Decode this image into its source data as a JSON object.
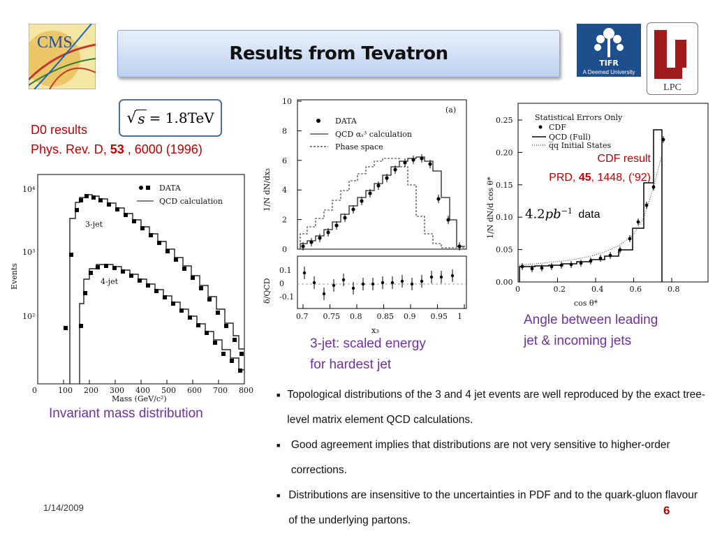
{
  "title": "Results from Tevatron",
  "formula": {
    "sqrt_lhs": "s",
    "rhs": "= 1.8TeV"
  },
  "d0": {
    "line1": "D0 results",
    "ref_prefix": "Phys. Rev. D, ",
    "ref_volume": "53",
    "ref_suffix": " ,  6000 (1996)"
  },
  "cdf": {
    "line1": "CDF result",
    "ref_prefix": "PRD, ",
    "ref_volume": "45",
    "ref_suffix": ", 1448, (‘92)",
    "lumi_value": "4.2",
    "lumi_unit": "pb",
    "lumi_exp": "−1",
    "lumi_label": "data"
  },
  "captions": {
    "mass": "Invariant mass distribution",
    "energy_line1": "3-jet: scaled energy",
    "energy_line2": "for hardest jet",
    "angle_line1": "Angle between leading",
    "angle_line2": "jet & incoming jets"
  },
  "bullets": [
    "Topological distributions of the 3 and 4 jet events are well reproduced by the exact tree-level matrix element QCD calculations.",
    "Good agreement implies that distributions are not very sensitive to higher-order corrections.",
    "Distributions are insensitive to the uncertainties in PDF and to the quark-gluon flavour of the underlying partons."
  ],
  "footer": {
    "date": "1/14/2009",
    "page": "6"
  },
  "logos": {
    "cms": "CMS",
    "tifr_name": "TIFR",
    "tifr_sub": "A Deemed University",
    "lpc": "LPC"
  },
  "plot_mass": {
    "legend": [
      "DATA",
      "QCD calculation"
    ],
    "labels_3jet": "3-jet",
    "labels_4jet": "4-jet",
    "xlabel": "Mass (GeV/c²)",
    "ylabel": "Events",
    "xticks": [
      "0",
      "100",
      "200",
      "300",
      "400",
      "500",
      "600",
      "700",
      "800"
    ],
    "yticks": [
      "10⁴",
      "10³",
      "10²"
    ]
  },
  "plot_energy": {
    "panel": "(a)",
    "legend": [
      "DATA",
      "QCD αₛ³ calculation",
      "Phase space"
    ],
    "ylabel": "1/N dN/dx₃",
    "ylabel2": "δ/QCD",
    "xlabel": "x₃",
    "yticks": [
      "10",
      "8",
      "6",
      "4",
      "2",
      "0"
    ],
    "yticks2": [
      "0.1",
      "0",
      "-0.1"
    ],
    "xticks": [
      "0.7",
      "0.75",
      "0.8",
      "0.85",
      "0.9",
      "0.95",
      "1"
    ]
  },
  "plot_angle": {
    "legend_title": "Statistical Errors Only",
    "legend": [
      "CDF",
      "QCD (Full)",
      "q̅q  Initial States"
    ],
    "ylabel": "1/N dN/d cos θ*",
    "xlabel": "cos θ*",
    "yticks": [
      "0.25",
      "0.20",
      "0.15",
      "0.10",
      "0.05",
      "0.00"
    ],
    "xticks": [
      "0",
      "0.2",
      "0.4",
      "0.6",
      "0.8"
    ]
  },
  "colors": {
    "red": "#c00000",
    "purple": "#7030a0",
    "title_bg": "#bcd0ee",
    "tifr_bg": "#1f4e8c",
    "lpc_red": "#a01c1c"
  }
}
